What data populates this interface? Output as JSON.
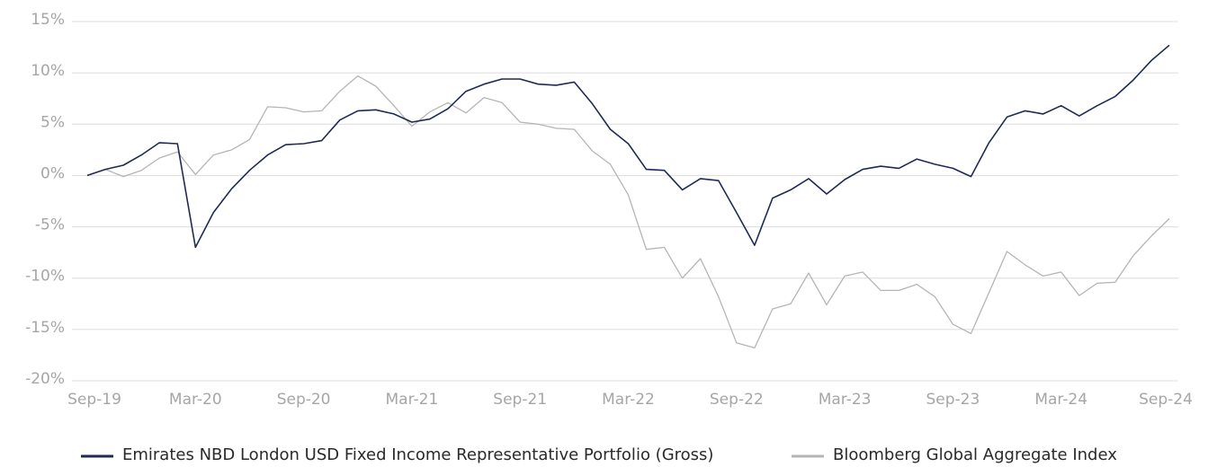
{
  "chart_data": {
    "type": "line",
    "categories": [
      "Sep-19",
      null,
      null,
      null,
      null,
      null,
      "Mar-20",
      null,
      null,
      null,
      null,
      null,
      "Sep-20",
      null,
      null,
      null,
      null,
      null,
      "Mar-21",
      null,
      null,
      null,
      null,
      null,
      "Sep-21",
      null,
      null,
      null,
      null,
      null,
      "Mar-22",
      null,
      null,
      null,
      null,
      null,
      "Sep-22",
      null,
      null,
      null,
      null,
      null,
      "Mar-23",
      null,
      null,
      null,
      null,
      null,
      "Sep-23",
      null,
      null,
      null,
      null,
      null,
      "Mar-24",
      null,
      null,
      null,
      null,
      null,
      "Sep-24"
    ],
    "series": [
      {
        "name": "Emirates NBD London USD Fixed Income Representative Portfolio (Gross)",
        "color": "#1f2a55",
        "values": [
          0,
          0.6,
          1.0,
          2.0,
          3.2,
          3.1,
          -7.0,
          -3.6,
          -1.3,
          0.5,
          2.0,
          3.0,
          3.1,
          3.4,
          5.4,
          6.3,
          6.4,
          6.0,
          5.2,
          5.5,
          6.5,
          8.2,
          8.9,
          9.4,
          9.4,
          8.9,
          8.8,
          9.1,
          7.0,
          4.5,
          3.1,
          0.6,
          0.5,
          -1.4,
          -0.3,
          -0.5,
          -3.6,
          -6.8,
          -2.2,
          -1.4,
          -0.3,
          -1.8,
          -0.4,
          0.6,
          0.9,
          0.7,
          1.6,
          1.1,
          0.7,
          -0.1,
          3.2,
          5.7,
          6.3,
          6.0,
          6.8,
          5.8,
          6.8,
          7.7,
          9.3,
          11.2,
          12.7
        ]
      },
      {
        "name": "Bloomberg Global Aggregate Index",
        "color": "#b5b5b5",
        "values": [
          0,
          0.6,
          -0.1,
          0.5,
          1.7,
          2.3,
          0.1,
          2.0,
          2.5,
          3.5,
          6.7,
          6.6,
          6.2,
          6.3,
          8.2,
          9.7,
          8.7,
          6.8,
          4.8,
          6.2,
          7.1,
          6.1,
          7.6,
          7.1,
          5.2,
          5.0,
          4.6,
          4.5,
          2.4,
          1.1,
          -1.9,
          -7.2,
          -7.0,
          -10.0,
          -8.1,
          -11.8,
          -16.3,
          -16.8,
          -13.0,
          -12.5,
          -9.5,
          -12.6,
          -9.8,
          -9.4,
          -11.2,
          -11.2,
          -10.6,
          -11.8,
          -14.5,
          -15.4,
          -11.4,
          -7.4,
          -8.7,
          -9.8,
          -9.4,
          -11.7,
          -10.5,
          -10.4,
          -7.8,
          -5.9,
          -4.2
        ]
      }
    ],
    "ylim": [
      -20,
      15
    ],
    "yticks": [
      {
        "value": -20,
        "label": "-20%"
      },
      {
        "value": -15,
        "label": "-15%"
      },
      {
        "value": -10,
        "label": "-10%"
      },
      {
        "value": -5,
        "label": "-5%"
      },
      {
        "value": 0,
        "label": "0%"
      },
      {
        "value": 5,
        "label": "5%"
      },
      {
        "value": 10,
        "label": "10%"
      },
      {
        "value": 15,
        "label": "15%"
      }
    ],
    "grid": true
  }
}
